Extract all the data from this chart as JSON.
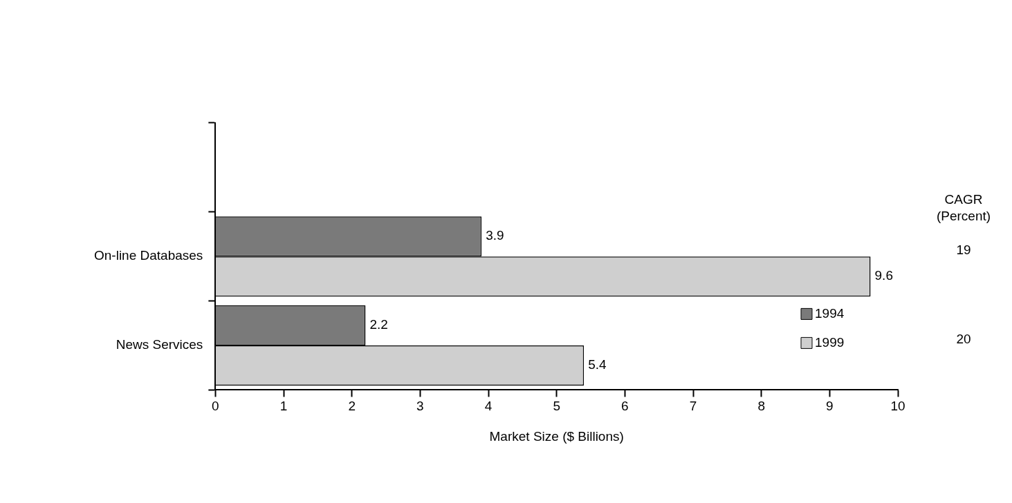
{
  "chart_data": {
    "type": "bar",
    "orientation": "horizontal",
    "xlabel": "Market Size ($ Billions)",
    "categories": [
      null,
      "On-line Databases",
      "News Services"
    ],
    "series": [
      {
        "name": "1994",
        "color": "#7a7a7a",
        "values": [
          null,
          3.9,
          2.2
        ]
      },
      {
        "name": "1999",
        "color": "#cfcfcf",
        "values": [
          null,
          9.6,
          5.4
        ]
      }
    ],
    "xlim": [
      0,
      10
    ],
    "xticks": [
      0,
      1,
      2,
      3,
      4,
      5,
      6,
      7,
      8,
      9,
      10
    ],
    "grid": false,
    "legend": "bottom right",
    "data_labels": true,
    "annotations": [
      "CAGR (Percent)",
      "19",
      "20"
    ]
  }
}
